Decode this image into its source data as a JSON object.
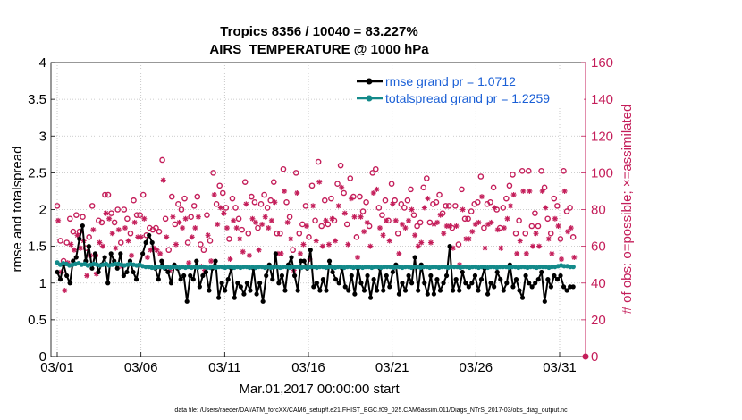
{
  "chart_data": {
    "type": "line",
    "title_line1": "Tropics 8356 / 10040 = 83.227%",
    "title_line2": "AIRS_TEMPERATURE @ 1000 hPa",
    "xlabel": "Mar.01,2017 00:00:00 start",
    "ylabel_left": "rmse and totalspread",
    "ylabel_right": "# of obs: o=possible; ×=assimilated",
    "xlim": [
      0,
      31.5
    ],
    "ylim_left": [
      0,
      4
    ],
    "ylim_right": [
      0,
      160
    ],
    "x_ticks": [
      {
        "v": 0,
        "label": "03/01"
      },
      {
        "v": 5,
        "label": "03/06"
      },
      {
        "v": 10,
        "label": "03/11"
      },
      {
        "v": 15,
        "label": "03/16"
      },
      {
        "v": 20,
        "label": "03/21"
      },
      {
        "v": 25,
        "label": "03/26"
      },
      {
        "v": 30,
        "label": "03/31"
      }
    ],
    "y_ticks_left": [
      "0",
      "0.5",
      "1",
      "1.5",
      "2",
      "2.5",
      "3",
      "3.5",
      "4"
    ],
    "y_ticks_right": [
      "0",
      "20",
      "40",
      "60",
      "80",
      "100",
      "120",
      "140",
      "160"
    ],
    "colors": {
      "rmse": "#000000",
      "spread": "#138a8a",
      "obs": "#c41e5a",
      "legend_text": "#1a5fd6"
    },
    "series": [
      {
        "name": "rmse",
        "legend": "rmse grand pr = 1.0712",
        "values": [
          1.15,
          1.05,
          1.25,
          1.1,
          1.0,
          1.3,
          1.35,
          1.6,
          1.78,
          1.3,
          1.5,
          1.2,
          1.4,
          1.15,
          1.25,
          1.35,
          1.0,
          1.4,
          1.3,
          1.2,
          1.4,
          1.1,
          1.15,
          1.3,
          1.15,
          1.05,
          1.25,
          1.4,
          1.55,
          1.65,
          1.55,
          1.2,
          1.05,
          1.3,
          1.2,
          1.15,
          1.0,
          1.25,
          1.2,
          1.05,
          1.1,
          0.75,
          1.1,
          1.05,
          1.3,
          0.95,
          1.1,
          1.15,
          0.9,
          1.2,
          1.3,
          0.8,
          1.0,
          0.9,
          1.05,
          1.2,
          0.8,
          1.0,
          0.95,
          0.85,
          1.0,
          0.9,
          1.2,
          0.85,
          1.0,
          0.75,
          1.1,
          1.25,
          1.05,
          1.4,
          1.0,
          1.1,
          0.9,
          1.25,
          1.35,
          1.1,
          0.9,
          1.3,
          1.3,
          1.2,
          1.45,
          0.95,
          1.0,
          0.9,
          1.05,
          0.9,
          1.3,
          1.15,
          1.05,
          1.0,
          1.2,
          0.95,
          0.9,
          1.1,
          0.85,
          1.2,
          1.0,
          0.9,
          1.1,
          0.8,
          1.05,
          0.9,
          1.2,
          0.9,
          1.1,
          0.95,
          1.15,
          1.25,
          0.85,
          1.0,
          0.9,
          1.1,
          1.0,
          1.35,
          0.9,
          1.25,
          1.0,
          0.85,
          1.1,
          0.85,
          1.05,
          0.9,
          1.0,
          1.1,
          1.5,
          0.9,
          1.05,
          0.9,
          1.15,
          1.0,
          0.95,
          1.0,
          1.1,
          0.9,
          1.05,
          1.2,
          0.85,
          1.0,
          0.95,
          1.15,
          1.05,
          0.9,
          1.0,
          1.25,
          0.95,
          1.05,
          0.9,
          0.8,
          1.1,
          1.0,
          0.95,
          1.0,
          1.05,
          1.15,
          0.75,
          1.05,
          0.95,
          1.1,
          1.05,
          1.1,
          0.95,
          0.9,
          0.95,
          0.95
        ]
      },
      {
        "name": "totalspread",
        "legend": "totalspread grand pr = 1.2259",
        "values": [
          1.28,
          1.25,
          1.27,
          1.26,
          1.24,
          1.25,
          1.26,
          1.27,
          1.25,
          1.26,
          1.24,
          1.25,
          1.26,
          1.25,
          1.24,
          1.25,
          1.26,
          1.24,
          1.25,
          1.26,
          1.26,
          1.25,
          1.24,
          1.25,
          1.26,
          1.25,
          1.24,
          1.25,
          1.23,
          1.22,
          1.22,
          1.21,
          1.21,
          1.22,
          1.22,
          1.21,
          1.22,
          1.21,
          1.22,
          1.22,
          1.21,
          1.22,
          1.21,
          1.22,
          1.21,
          1.22,
          1.21,
          1.22,
          1.22,
          1.21,
          1.21,
          1.22,
          1.21,
          1.22,
          1.22,
          1.21,
          1.22,
          1.22,
          1.21,
          1.22,
          1.21,
          1.22,
          1.22,
          1.21,
          1.22,
          1.21,
          1.22,
          1.22,
          1.21,
          1.22,
          1.21,
          1.22,
          1.22,
          1.21,
          1.22,
          1.22,
          1.21,
          1.22,
          1.22,
          1.22,
          1.21,
          1.22,
          1.21,
          1.22,
          1.22,
          1.21,
          1.22,
          1.22,
          1.21,
          1.22,
          1.22,
          1.21,
          1.22,
          1.22,
          1.21,
          1.22,
          1.22,
          1.21,
          1.22,
          1.22,
          1.21,
          1.22,
          1.22,
          1.21,
          1.22,
          1.22,
          1.21,
          1.22,
          1.22,
          1.22,
          1.21,
          1.22,
          1.22,
          1.21,
          1.22,
          1.22,
          1.21,
          1.22,
          1.22,
          1.21,
          1.22,
          1.22,
          1.21,
          1.22,
          1.22,
          1.21,
          1.22,
          1.22,
          1.21,
          1.22,
          1.22,
          1.22,
          1.21,
          1.22,
          1.22,
          1.21,
          1.22,
          1.22,
          1.21,
          1.22,
          1.22,
          1.21,
          1.22,
          1.22,
          1.21,
          1.22,
          1.22,
          1.22,
          1.21,
          1.22,
          1.22,
          1.21,
          1.22,
          1.22,
          1.21,
          1.22,
          1.22,
          1.21,
          1.22,
          1.22,
          1.22,
          1.21,
          1.22,
          1.22,
          1.23,
          1.24,
          1.23,
          1.23,
          1.22,
          1.22
        ]
      },
      {
        "name": "obs_possible",
        "values": [
          82,
          63,
          52,
          62,
          75,
          68,
          77,
          68,
          76,
          59,
          65,
          82,
          55,
          74,
          73,
          88,
          88,
          78,
          73,
          80,
          62,
          80,
          75,
          67,
          85,
          77,
          77,
          88,
          66,
          70,
          69,
          70,
          68,
          107,
          75,
          58,
          87,
          72,
          83,
          80,
          86,
          62,
          76,
          82,
          87,
          61,
          58,
          77,
          63,
          100,
          83,
          93,
          89,
          81,
          64,
          86,
          81,
          75,
          69,
          95,
          67,
          87,
          84,
          70,
          83,
          88,
          81,
          85,
          95,
          67,
          67,
          102,
          84,
          76,
          58,
          100,
          67,
          72,
          82,
          65,
          93,
          74,
          106,
          71,
          85,
          72,
          86,
          74,
          94,
          104,
          89,
          72,
          97,
          87,
          65,
          87,
          79,
          84,
          71,
          100,
          102,
          81,
          77,
          85,
          74,
          94,
          85,
          67,
          83,
          81,
          85,
          91,
          77,
          71,
          73,
          92,
          97,
          73,
          83,
          84,
          88,
          78,
          82,
          82,
          70,
          82,
          61,
          91,
          75,
          75,
          79,
          83,
          84,
          98,
          70,
          83,
          84,
          92,
          80,
          70,
          81,
          86,
          93,
          99,
          67,
          74,
          101,
          67,
          101,
          71,
          78,
          71,
          101,
          92,
          75,
          67,
          86,
          82,
          64,
          101,
          79,
          81,
          65
        ]
      },
      {
        "name": "obs_assimilated",
        "values": [
          74,
          46,
          36,
          51,
          61,
          58,
          66,
          59,
          63,
          44,
          55,
          69,
          45,
          62,
          60,
          78,
          75,
          67,
          59,
          69,
          49,
          70,
          63,
          55,
          73,
          65,
          65,
          75,
          54,
          58,
          59,
          58,
          56,
          96,
          65,
          47,
          76,
          61,
          73,
          70,
          75,
          51,
          65,
          70,
          76,
          49,
          47,
          66,
          52,
          88,
          72,
          81,
          78,
          70,
          53,
          74,
          70,
          64,
          57,
          83,
          55,
          75,
          73,
          58,
          72,
          76,
          70,
          74,
          84,
          56,
          56,
          90,
          73,
          64,
          47,
          89,
          56,
          61,
          71,
          53,
          82,
          63,
          95,
          60,
          74,
          61,
          75,
          63,
          82,
          92,
          78,
          61,
          86,
          76,
          54,
          76,
          68,
          73,
          60,
          89,
          91,
          70,
          66,
          74,
          63,
          83,
          74,
          56,
          72,
          70,
          74,
          80,
          66,
          60,
          62,
          81,
          86,
          62,
          72,
          73,
          77,
          67,
          71,
          71,
          59,
          71,
          50,
          80,
          64,
          64,
          68,
          72,
          73,
          87,
          59,
          72,
          73,
          81,
          69,
          59,
          70,
          75,
          82,
          88,
          56,
          63,
          90,
          56,
          90,
          60,
          67,
          60,
          90,
          81,
          64,
          56,
          75,
          71,
          53,
          90,
          68,
          70,
          54
        ]
      }
    ]
  },
  "footer": {
    "data_file": "data file: /Users/raeder/DAI/ATM_forcXX/CAM6_setup/f.e21.FHIST_BGC.f09_025.CAM6assim.011/Diags_NTrS_2017-03/obs_diag_output.nc"
  }
}
